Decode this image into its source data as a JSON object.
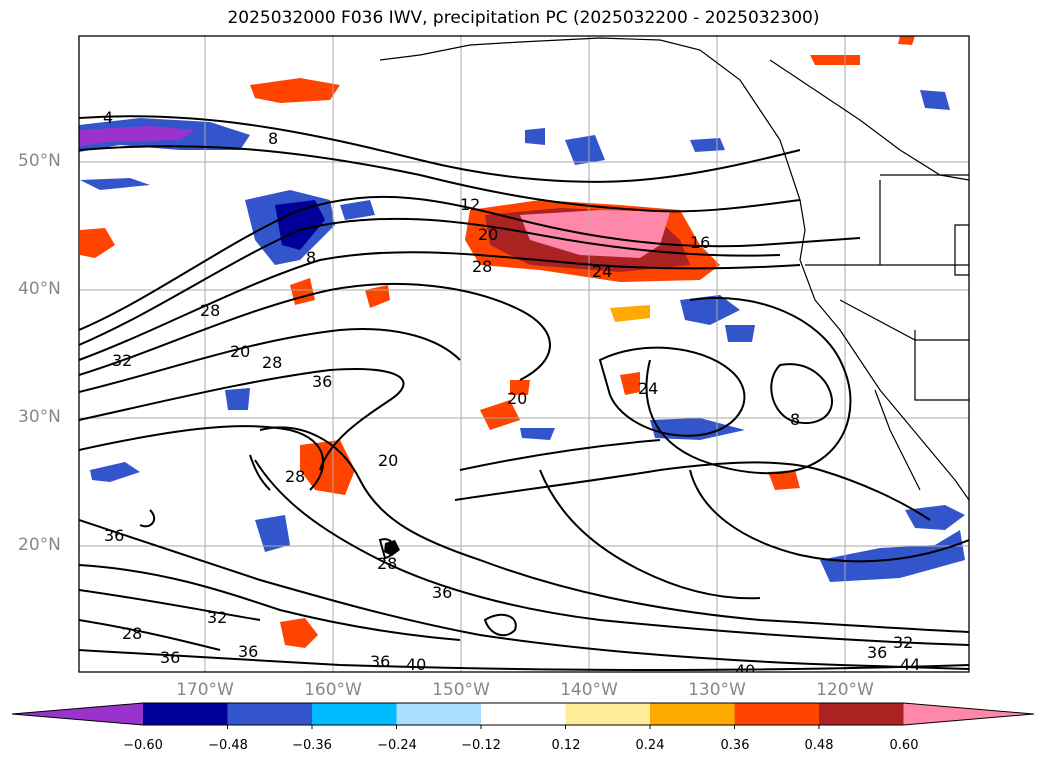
{
  "title": "2025032000 F036 IWV, precipitation PC (2025032200 - 2025032300)",
  "lat_labels": [
    "50°N",
    "40°N",
    "30°N",
    "20°N"
  ],
  "lon_labels": [
    "170°W",
    "160°W",
    "150°W",
    "140°W",
    "130°W",
    "120°W"
  ],
  "colorbar": {
    "colors": [
      "#9933cc",
      "#000099",
      "#3355cc",
      "#00bbff",
      "#aaddff",
      "#ffffff",
      "#ffee99",
      "#ffaa00",
      "#ff4400",
      "#aa2222",
      "#ff88aa"
    ],
    "ticks": [
      "−0.60",
      "−0.48",
      "−0.36",
      "−0.24",
      "−0.12",
      "0.12",
      "0.24",
      "0.36",
      "0.48",
      "0.60"
    ]
  },
  "contour_labels": [
    "4",
    "8",
    "12",
    "16",
    "20",
    "24",
    "28",
    "28",
    "32",
    "36",
    "20",
    "28",
    "36",
    "20",
    "24",
    "8",
    "20",
    "28",
    "36",
    "28",
    "32",
    "36",
    "36",
    "36",
    "40",
    "40",
    "36",
    "32",
    "44",
    "28",
    "8"
  ]
}
